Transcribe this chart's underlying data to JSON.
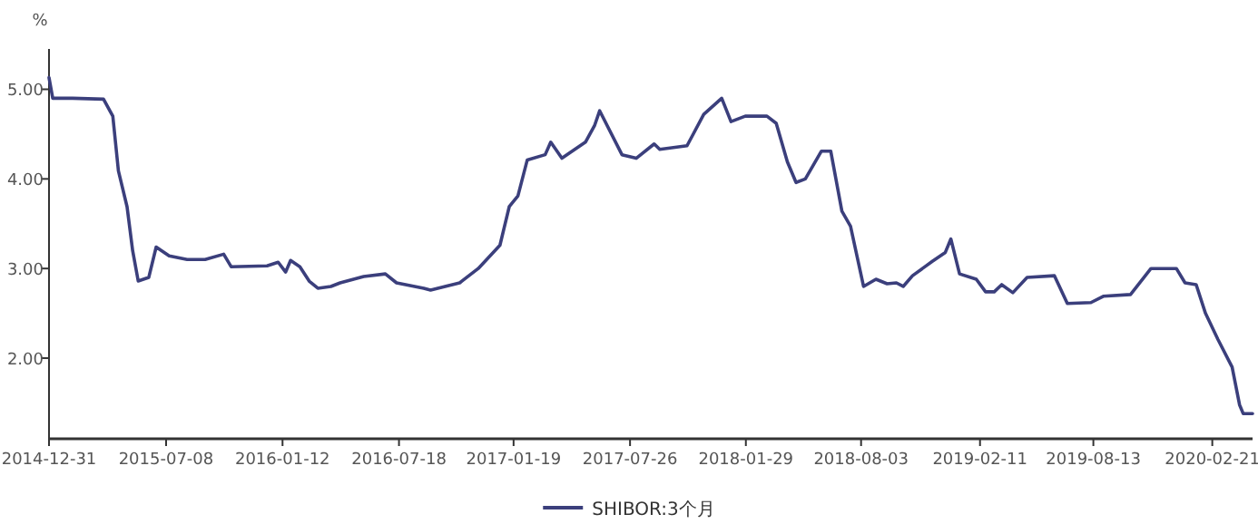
{
  "chart_data": {
    "type": "line",
    "ylabel": "%",
    "x": [
      "2014-12-31",
      "2015-01-06",
      "2015-02-07",
      "2015-03-29",
      "2015-04-13",
      "2015-04-22",
      "2015-05-06",
      "2015-05-15",
      "2015-05-24",
      "2015-06-10",
      "2015-06-22",
      "2015-07-13",
      "2015-08-11",
      "2015-09-09",
      "2015-10-09",
      "2015-10-21",
      "2015-12-18",
      "2016-01-05",
      "2016-01-17",
      "2016-01-25",
      "2016-02-09",
      "2016-02-24",
      "2016-03-09",
      "2016-03-30",
      "2016-04-14",
      "2016-05-22",
      "2016-06-26",
      "2016-07-14",
      "2016-08-27",
      "2016-09-07",
      "2016-10-24",
      "2016-11-23",
      "2016-12-28",
      "2017-01-12",
      "2017-01-26",
      "2017-02-10",
      "2017-03-11",
      "2017-03-20",
      "2017-04-07",
      "2017-05-15",
      "2017-05-30",
      "2017-06-07",
      "2017-07-13",
      "2017-08-05",
      "2017-09-03",
      "2017-09-12",
      "2017-10-26",
      "2017-11-22",
      "2017-12-21",
      "2018-01-05",
      "2018-01-28",
      "2018-03-04",
      "2018-03-19",
      "2018-04-06",
      "2018-04-20",
      "2018-05-05",
      "2018-05-31",
      "2018-06-15",
      "2018-07-03",
      "2018-07-17",
      "2018-08-07",
      "2018-08-27",
      "2018-09-14",
      "2018-09-29",
      "2018-10-10",
      "2018-10-25",
      "2018-11-26",
      "2018-12-17",
      "2018-12-26",
      "2019-01-09",
      "2019-02-05",
      "2019-02-20",
      "2019-03-06",
      "2019-03-18",
      "2019-04-05",
      "2019-04-28",
      "2019-06-11",
      "2019-07-02",
      "2019-08-09",
      "2019-08-29",
      "2019-10-12",
      "2019-11-14",
      "2019-12-25",
      "2020-01-08",
      "2020-01-26",
      "2020-02-10",
      "2020-03-01",
      "2020-03-24",
      "2020-04-05",
      "2020-04-11",
      "2020-04-26"
    ],
    "series": [
      {
        "name": "SHIBOR:3个月",
        "color": "#3b3f7c",
        "values": [
          5.13,
          4.9,
          4.9,
          4.89,
          4.7,
          4.09,
          3.69,
          3.2,
          2.86,
          2.9,
          3.24,
          3.14,
          3.1,
          3.1,
          3.16,
          3.02,
          3.03,
          3.07,
          2.96,
          3.09,
          3.02,
          2.86,
          2.78,
          2.8,
          2.84,
          2.91,
          2.94,
          2.84,
          2.78,
          2.76,
          2.84,
          3.0,
          3.26,
          3.69,
          3.81,
          4.21,
          4.27,
          4.41,
          4.23,
          4.41,
          4.6,
          4.76,
          4.27,
          4.23,
          4.39,
          4.33,
          4.37,
          4.72,
          4.9,
          4.64,
          4.7,
          4.7,
          4.62,
          4.19,
          3.96,
          4.0,
          4.31,
          4.31,
          3.64,
          3.47,
          2.8,
          2.88,
          2.83,
          2.84,
          2.8,
          2.92,
          3.08,
          3.18,
          3.33,
          2.94,
          2.88,
          2.74,
          2.74,
          2.82,
          2.73,
          2.9,
          2.92,
          2.61,
          2.62,
          2.69,
          2.71,
          3.0,
          3.0,
          2.84,
          2.82,
          2.5,
          2.21,
          1.9,
          1.48,
          1.38,
          1.38
        ]
      }
    ],
    "xlim": [
      "2014-12-31",
      "2020-04-26"
    ],
    "xticks": [
      "2014-12-31",
      "2015-07-08",
      "2016-01-12",
      "2016-07-18",
      "2017-01-19",
      "2017-07-26",
      "2018-01-29",
      "2018-08-03",
      "2019-02-11",
      "2019-08-13",
      "2020-02-21"
    ],
    "ylim": [
      1.1,
      5.45
    ],
    "yticks": [
      {
        "value": 2,
        "label": "2.00"
      },
      {
        "value": 3,
        "label": "3.00"
      },
      {
        "value": 4,
        "label": "4.00"
      },
      {
        "value": 5,
        "label": "5.00"
      }
    ],
    "grid": false,
    "legend": "bottom",
    "marker": "none",
    "line_style": "solid"
  }
}
